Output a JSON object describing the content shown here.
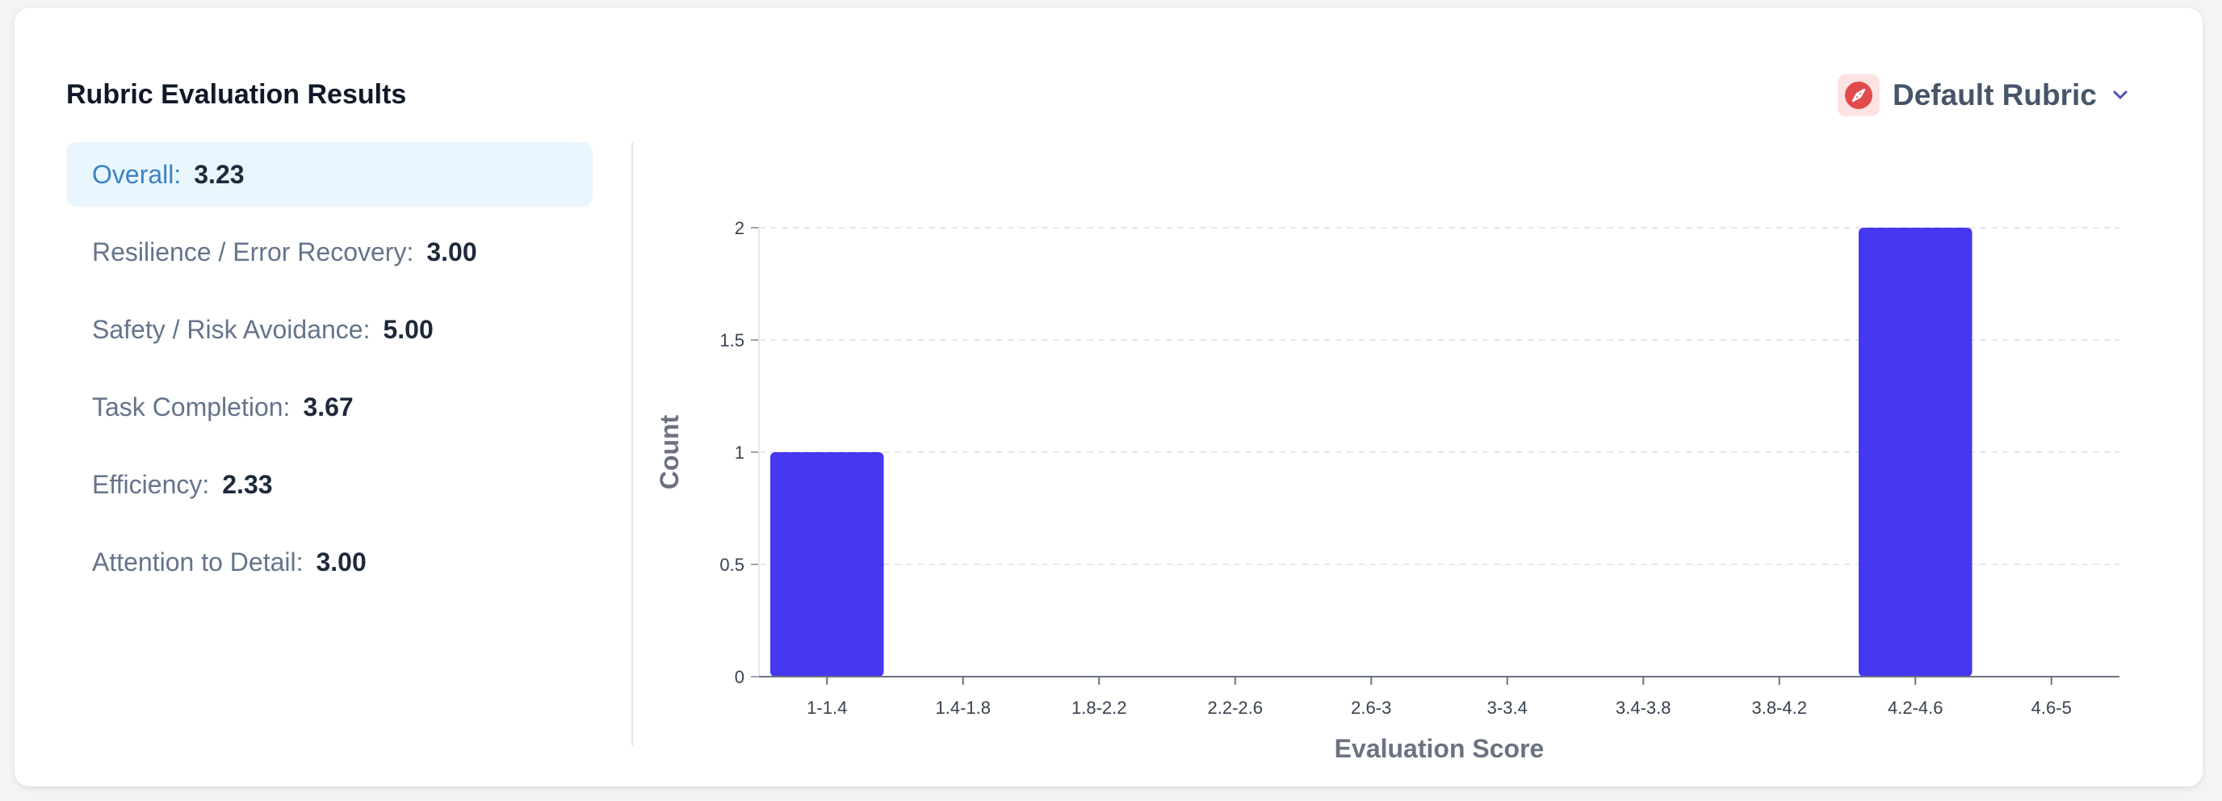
{
  "header": {
    "title": "Rubric Evaluation Results",
    "rubric_selector": {
      "label": "Default Rubric",
      "icon": "compass-icon"
    }
  },
  "scores": [
    {
      "label": "Overall:",
      "value": "3.23",
      "active": true
    },
    {
      "label": "Resilience / Error Recovery:",
      "value": "3.00"
    },
    {
      "label": "Safety / Risk Avoidance:",
      "value": "5.00"
    },
    {
      "label": "Task Completion:",
      "value": "3.67"
    },
    {
      "label": "Efficiency:",
      "value": "2.33"
    },
    {
      "label": "Attention to Detail:",
      "value": "3.00"
    }
  ],
  "colors": {
    "bar": "#4637f0",
    "active_bg": "#eaf6fd",
    "active_text": "#3b82c4",
    "icon_bg": "#fde2e2",
    "icon_fg": "#e24b4b"
  },
  "chart_data": {
    "type": "bar",
    "categories": [
      "1-1.4",
      "1.4-1.8",
      "1.8-2.2",
      "2.2-2.6",
      "2.6-3",
      "3-3.4",
      "3.4-3.8",
      "3.8-4.2",
      "4.2-4.6",
      "4.6-5"
    ],
    "values": [
      1,
      0,
      0,
      0,
      0,
      0,
      0,
      0,
      2,
      0
    ],
    "xlabel": "Evaluation Score",
    "ylabel": "Count",
    "ylim": [
      0,
      2
    ],
    "yticks": [
      "0",
      "0.5",
      "1",
      "1.5",
      "2"
    ],
    "grid": true
  }
}
